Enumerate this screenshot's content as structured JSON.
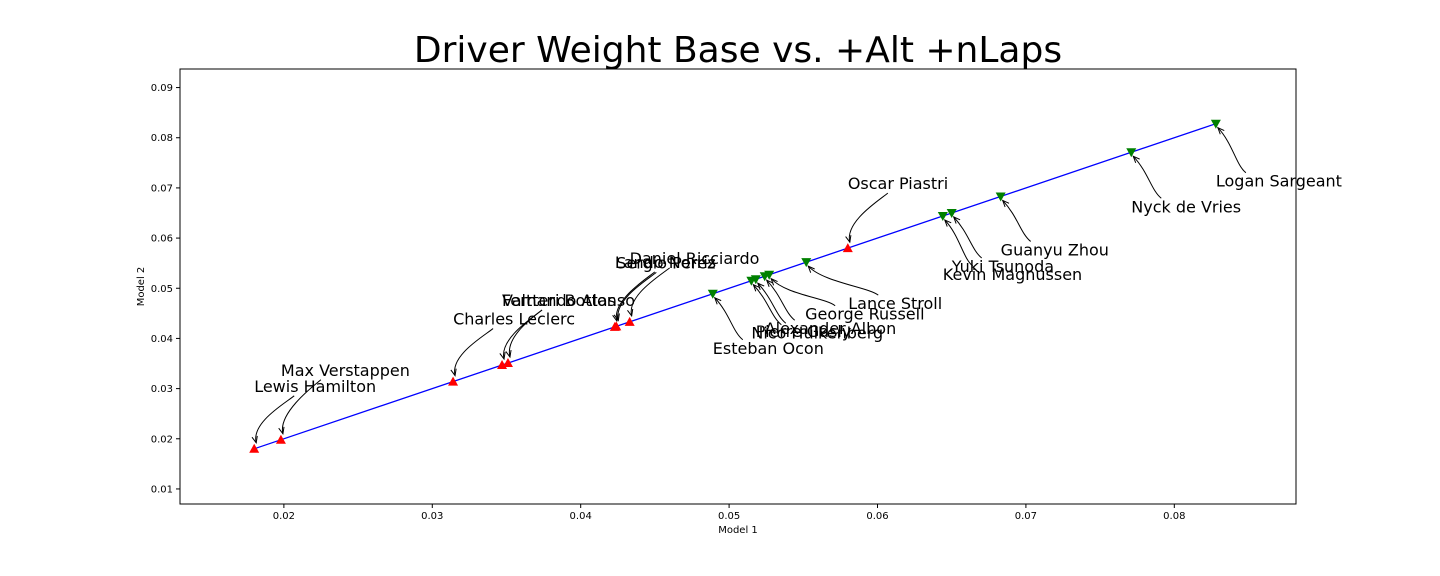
{
  "chart_data": {
    "type": "scatter",
    "title": "Driver Weight Base vs. +Alt +nLaps",
    "xlabel": "Model 1",
    "ylabel": "Model 2",
    "xlim": [
      0.013,
      0.0882
    ],
    "ylim": [
      0.007,
      0.0937
    ],
    "xticks": [
      0.02,
      0.03,
      0.04,
      0.05,
      0.06,
      0.07,
      0.08
    ],
    "yticks": [
      0.01,
      0.02,
      0.03,
      0.04,
      0.05,
      0.06,
      0.07,
      0.08,
      0.09
    ],
    "grid": false,
    "line": {
      "color": "#0000ff",
      "x": [
        0.018,
        0.0828
      ],
      "y": [
        0.018,
        0.0828
      ]
    },
    "colors": {
      "up_marker": "#ff0000",
      "down_marker": "#008000",
      "line": "#0000ff"
    },
    "points": [
      {
        "name": "Lewis Hamilton",
        "x": 0.018,
        "y": 0.018,
        "marker": "up"
      },
      {
        "name": "Max Verstappen",
        "x": 0.0198,
        "y": 0.0198,
        "marker": "up"
      },
      {
        "name": "Charles Leclerc",
        "x": 0.0314,
        "y": 0.0314,
        "marker": "up"
      },
      {
        "name": "Valtteri Bottas",
        "x": 0.0347,
        "y": 0.0347,
        "marker": "up"
      },
      {
        "name": "Fernando Alonso",
        "x": 0.0351,
        "y": 0.0351,
        "marker": "up"
      },
      {
        "name": "Lando Norris",
        "x": 0.0423,
        "y": 0.0423,
        "marker": "up"
      },
      {
        "name": "Sergio Perez",
        "x": 0.0424,
        "y": 0.0424,
        "marker": "up"
      },
      {
        "name": "Daniel Ricciardo",
        "x": 0.0433,
        "y": 0.0433,
        "marker": "up"
      },
      {
        "name": "Esteban Ocon",
        "x": 0.0489,
        "y": 0.0489,
        "marker": "down"
      },
      {
        "name": "Nico Hulkenberg",
        "x": 0.0515,
        "y": 0.0515,
        "marker": "down"
      },
      {
        "name": "Pierre Gasly",
        "x": 0.0518,
        "y": 0.0518,
        "marker": "down"
      },
      {
        "name": "Alexander Albon",
        "x": 0.0524,
        "y": 0.0524,
        "marker": "down"
      },
      {
        "name": "George Russell",
        "x": 0.0527,
        "y": 0.0527,
        "marker": "down"
      },
      {
        "name": "Lance Stroll",
        "x": 0.0552,
        "y": 0.0552,
        "marker": "down"
      },
      {
        "name": "Oscar Piastri",
        "x": 0.058,
        "y": 0.058,
        "marker": "up"
      },
      {
        "name": "Kevin Magnussen",
        "x": 0.0644,
        "y": 0.0644,
        "marker": "down"
      },
      {
        "name": "Yuki Tsunoda",
        "x": 0.065,
        "y": 0.065,
        "marker": "down"
      },
      {
        "name": "Guanyu Zhou",
        "x": 0.0683,
        "y": 0.0683,
        "marker": "down"
      },
      {
        "name": "Nyck de Vries",
        "x": 0.0771,
        "y": 0.0771,
        "marker": "down"
      },
      {
        "name": "Logan Sargeant",
        "x": 0.0828,
        "y": 0.0828,
        "marker": "down"
      }
    ]
  }
}
